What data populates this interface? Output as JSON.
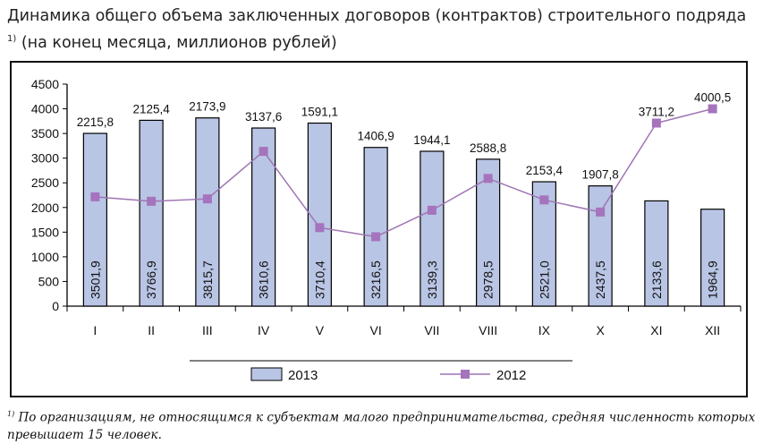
{
  "title": "Динамика общего объема заключенных договоров (контрактов) строительного подряда",
  "title_sup": "1)",
  "title_rest": "(на конец месяца, миллионов рублей)",
  "footnote_mark": "1)",
  "footnote": "По организациям, не относящимся к субъектам малого предпринимательства, средняя численность которых превышает 15 человек.",
  "colors": {
    "bar": "#b9c5e4",
    "line": "#9f74b4",
    "marker": "#a673bd"
  },
  "chart_data": {
    "type": "bar+line",
    "categories": [
      "I",
      "II",
      "III",
      "IV",
      "V",
      "VI",
      "VII",
      "VIII",
      "IX",
      "X",
      "XI",
      "XII"
    ],
    "ylim": [
      0,
      4500
    ],
    "yticks": [
      0,
      500,
      1000,
      1500,
      2000,
      2500,
      3000,
      3500,
      4000,
      4500
    ],
    "grid": false,
    "legend": "bottom",
    "series": [
      {
        "name": "2013",
        "type": "bar",
        "values": [
          3501.9,
          3766.9,
          3815.7,
          3610.6,
          3710.4,
          3216.5,
          3139.3,
          2978.5,
          2521.0,
          2437.5,
          2133.6,
          1964.9
        ],
        "labels": [
          "3501,9",
          "3766,9",
          "3815,7",
          "3610,6",
          "3710,4",
          "3216,5",
          "3139,3",
          "2978,5",
          "2521,0",
          "2437,5",
          "2133,6",
          "1964,9"
        ]
      },
      {
        "name": "2012",
        "type": "line",
        "values": [
          2215.8,
          2125.4,
          2173.9,
          3137.6,
          1591.1,
          1406.9,
          1944.1,
          2588.8,
          2153.4,
          1907.8,
          3711.2,
          4000.5
        ],
        "labels": [
          "2215,8",
          "2125,4",
          "2173,9",
          "3137,6",
          "1591,1",
          "1406,9",
          "1944,1",
          "2588,8",
          "2153,4",
          "1907,8",
          "3711,2",
          "4000,5"
        ]
      }
    ]
  }
}
